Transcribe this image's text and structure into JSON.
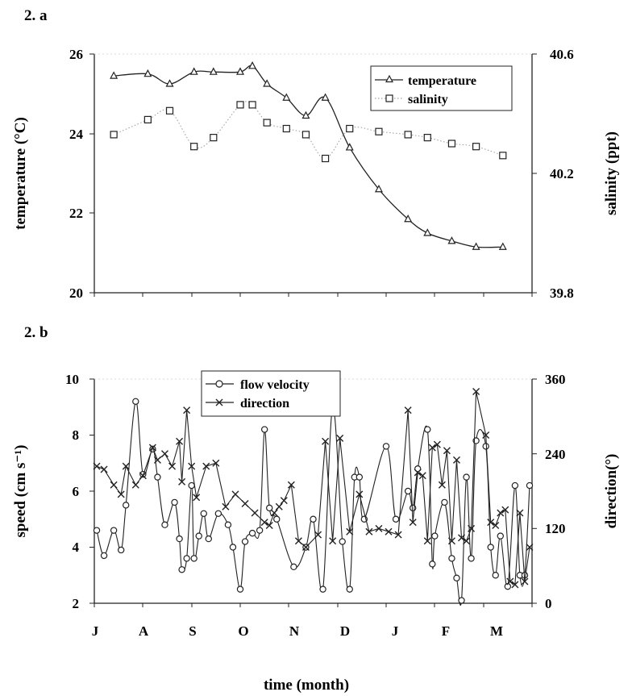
{
  "chart_data": [
    {
      "panel": "2. a",
      "type": "line",
      "xlabel": "",
      "ylabel": "temperature (°C)",
      "ylabel_right": "salinity (ppt)",
      "ylim": [
        20,
        26
      ],
      "yticks": [
        "20",
        "22",
        "24",
        "26"
      ],
      "ylim_right": [
        39.8,
        40.6
      ],
      "yticks_right": [
        "39.8",
        "40.2",
        "40.6"
      ],
      "x_domain": [
        0,
        9
      ],
      "grid": false,
      "legend": "top-right",
      "series": [
        {
          "name": "temperature",
          "axis": "left",
          "marker": "triangle",
          "line": "solid",
          "x": [
            0.4,
            1.1,
            1.55,
            2.05,
            2.45,
            3.0,
            3.25,
            3.55,
            3.95,
            4.35,
            4.75,
            5.25,
            5.85,
            6.45,
            6.85,
            7.35,
            7.85,
            8.4
          ],
          "y": [
            25.45,
            25.5,
            25.25,
            25.55,
            25.55,
            25.55,
            25.7,
            25.25,
            24.9,
            24.45,
            24.9,
            23.65,
            22.6,
            21.85,
            21.5,
            21.3,
            21.15,
            21.15
          ]
        },
        {
          "name": "salinity",
          "axis": "right",
          "marker": "square",
          "line": "dotted",
          "x": [
            0.4,
            1.1,
            1.55,
            2.05,
            2.45,
            3.0,
            3.25,
            3.55,
            3.95,
            4.35,
            4.75,
            5.25,
            5.85,
            6.45,
            6.85,
            7.35,
            7.85,
            8.4
          ],
          "y": [
            40.33,
            40.38,
            40.41,
            40.29,
            40.32,
            40.43,
            40.43,
            40.37,
            40.35,
            40.33,
            40.25,
            40.35,
            40.34,
            40.33,
            40.32,
            40.3,
            40.29,
            40.26
          ]
        }
      ]
    },
    {
      "panel": "2. b",
      "type": "line",
      "xlabel": "time (month)",
      "x_tick_labels": [
        "J",
        "A",
        "S",
        "O",
        "N",
        "D",
        "J",
        "F",
        "M"
      ],
      "x_domain": [
        0,
        9
      ],
      "ylabel": "speed (cm s⁻¹)",
      "ylabel_right": "direction(°)",
      "ylim": [
        2,
        10
      ],
      "yticks": [
        "2",
        "4",
        "6",
        "8",
        "10"
      ],
      "ylim_right": [
        0,
        360
      ],
      "yticks_right": [
        "0",
        "120",
        "240",
        "360"
      ],
      "grid": false,
      "legend": "top-center",
      "series": [
        {
          "name": "flow velocity",
          "axis": "left",
          "marker": "circle",
          "x": [
            0.05,
            0.2,
            0.4,
            0.55,
            0.65,
            0.85,
            1.0,
            1.2,
            1.3,
            1.45,
            1.65,
            1.75,
            1.8,
            1.9,
            2.0,
            2.05,
            2.15,
            2.25,
            2.35,
            2.55,
            2.75,
            2.85,
            3.0,
            3.1,
            3.25,
            3.4,
            3.5,
            3.6,
            3.75,
            4.1,
            4.35,
            4.5,
            4.7,
            4.9,
            5.1,
            5.25,
            5.35,
            5.45,
            5.55,
            6.0,
            6.2,
            6.45,
            6.55,
            6.65,
            6.85,
            6.95,
            7.0,
            7.2,
            7.35,
            7.45,
            7.55,
            7.65,
            7.75,
            7.85,
            8.05,
            8.15,
            8.25,
            8.35,
            8.5,
            8.65,
            8.75,
            8.85,
            8.95
          ],
          "y": [
            4.6,
            3.7,
            4.6,
            3.9,
            5.5,
            9.2,
            6.6,
            7.5,
            6.5,
            4.8,
            5.6,
            4.3,
            3.2,
            3.6,
            6.2,
            3.6,
            4.4,
            5.2,
            4.3,
            5.2,
            4.8,
            4.0,
            2.5,
            4.2,
            4.5,
            4.6,
            8.2,
            5.4,
            5.0,
            3.3,
            4.0,
            5.0,
            2.5,
            9.0,
            4.2,
            2.5,
            6.5,
            6.5,
            5.0,
            7.6,
            5.0,
            6.0,
            5.4,
            6.8,
            8.2,
            3.4,
            4.4,
            5.6,
            3.6,
            2.9,
            2.1,
            6.5,
            3.6,
            7.8,
            7.6,
            4.0,
            3.0,
            4.4,
            2.6,
            6.2,
            3.0,
            3.0,
            6.2
          ]
        },
        {
          "name": "direction",
          "axis": "right",
          "marker": "x",
          "x": [
            0.05,
            0.2,
            0.4,
            0.55,
            0.65,
            0.85,
            1.0,
            1.2,
            1.3,
            1.45,
            1.6,
            1.75,
            1.8,
            1.9,
            2.0,
            2.1,
            2.3,
            2.5,
            2.7,
            2.9,
            3.1,
            3.3,
            3.5,
            3.6,
            3.7,
            3.8,
            3.9,
            4.05,
            4.2,
            4.35,
            4.6,
            4.75,
            4.9,
            5.05,
            5.25,
            5.45,
            5.65,
            5.85,
            6.05,
            6.25,
            6.45,
            6.55,
            6.65,
            6.75,
            6.85,
            6.95,
            7.05,
            7.15,
            7.25,
            7.35,
            7.45,
            7.55,
            7.65,
            7.75,
            7.85,
            8.05,
            8.15,
            8.25,
            8.35,
            8.45,
            8.55,
            8.65,
            8.75,
            8.85,
            8.95
          ],
          "y": [
            220,
            215,
            190,
            175,
            220,
            190,
            205,
            250,
            230,
            240,
            220,
            260,
            195,
            310,
            220,
            170,
            220,
            225,
            155,
            175,
            160,
            145,
            130,
            125,
            145,
            155,
            165,
            190,
            100,
            90,
            110,
            260,
            100,
            265,
            115,
            175,
            115,
            120,
            115,
            110,
            310,
            130,
            210,
            205,
            100,
            250,
            255,
            190,
            245,
            100,
            230,
            105,
            100,
            120,
            340,
            270,
            130,
            125,
            145,
            150,
            35,
            30,
            145,
            35,
            90
          ]
        }
      ]
    }
  ]
}
